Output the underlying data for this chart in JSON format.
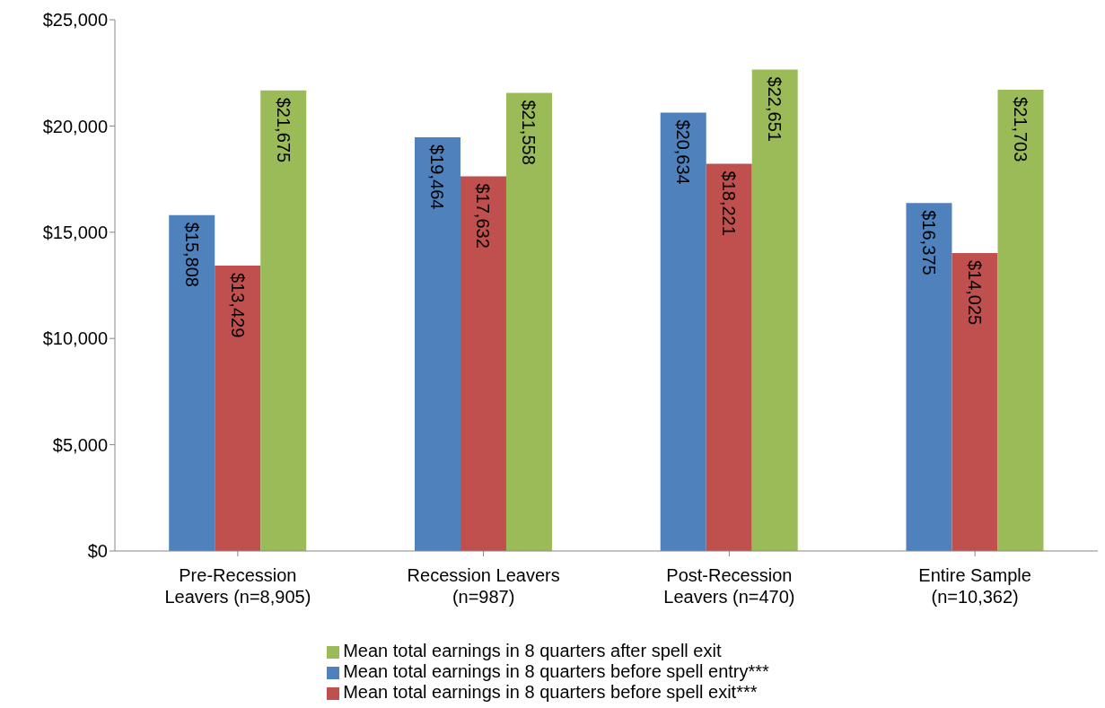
{
  "chart_data": {
    "type": "bar",
    "categories": [
      "Pre-Recession Leavers (n=8,905)",
      "Recession Leavers (n=987)",
      "Post-Recession Leavers (n=470)",
      "Entire Sample (n=10,362)"
    ],
    "series": [
      {
        "name": "Mean total earnings in 8 quarters before spell entry***",
        "color": "#4f81bd",
        "values": [
          15808,
          19464,
          20634,
          16375
        ],
        "value_labels": [
          "$15,808",
          "$19,464",
          "$20,634",
          "$16,375"
        ]
      },
      {
        "name": "Mean total earnings in 8 quarters before spell exit***",
        "color": "#c0504d",
        "values": [
          13429,
          17632,
          18221,
          14025
        ],
        "value_labels": [
          "$13,429",
          "$17,632",
          "$18,221",
          "$14,025"
        ]
      },
      {
        "name": "Mean total earnings in 8 quarters after spell exit",
        "color": "#9bbb59",
        "values": [
          21675,
          21558,
          22651,
          21703
        ],
        "value_labels": [
          "$21,675",
          "$21,558",
          "$22,651",
          "$21,703"
        ]
      }
    ],
    "ylim": [
      0,
      25000
    ],
    "yticks": [
      {
        "value": 0,
        "label": "$0"
      },
      {
        "value": 5000,
        "label": "$5,000"
      },
      {
        "value": 10000,
        "label": "$10,000"
      },
      {
        "value": 15000,
        "label": "$15,000"
      },
      {
        "value": 20000,
        "label": "$20,000"
      },
      {
        "value": 25000,
        "label": "$25,000"
      }
    ],
    "grid": false,
    "legend": "bottom"
  }
}
